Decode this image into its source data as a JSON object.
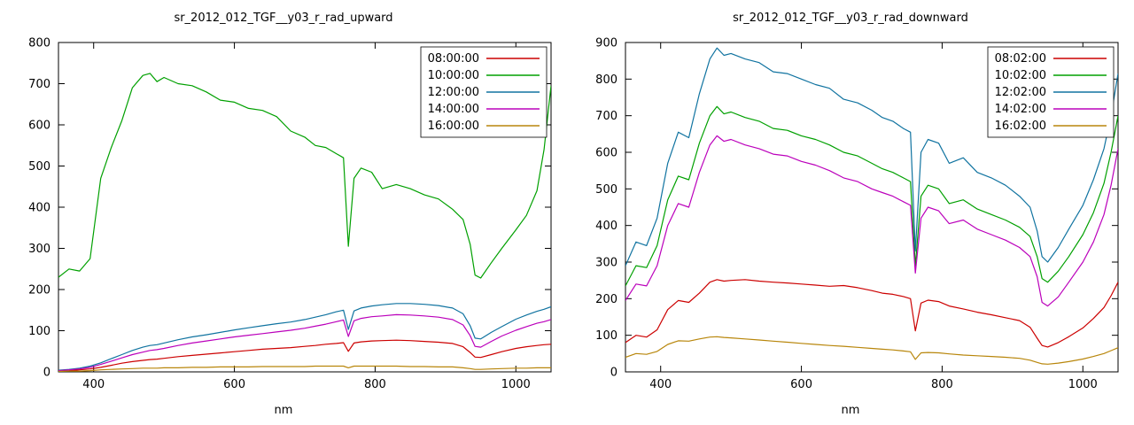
{
  "page": {
    "background": "#ffffff"
  },
  "chart_data": [
    {
      "type": "line",
      "title": "sr_2012_012_TGF__y03_r_rad_upward",
      "xlabel": "nm",
      "xlim": [
        350,
        1050
      ],
      "ylim": [
        0,
        800
      ],
      "xticks": [
        400,
        600,
        800,
        1000
      ],
      "yticks": [
        0,
        100,
        200,
        300,
        400,
        500,
        600,
        700,
        800
      ],
      "legend_position": "top-right",
      "grid": false,
      "x": [
        350,
        365,
        380,
        395,
        410,
        425,
        440,
        455,
        470,
        480,
        490,
        500,
        520,
        540,
        560,
        580,
        600,
        620,
        640,
        660,
        680,
        700,
        715,
        730,
        745,
        755,
        762,
        770,
        780,
        795,
        810,
        830,
        850,
        870,
        890,
        910,
        925,
        935,
        942,
        950,
        965,
        980,
        1000,
        1015,
        1030,
        1040,
        1050
      ],
      "series": [
        {
          "name": "08:00:00",
          "color": "#cc0000",
          "values": [
            2,
            3,
            5,
            7,
            11,
            16,
            21,
            25,
            28,
            30,
            31,
            33,
            37,
            40,
            43,
            46,
            49,
            52,
            55,
            57,
            59,
            62,
            64,
            67,
            69,
            71,
            50,
            70,
            73,
            75,
            76,
            77,
            76,
            74,
            72,
            69,
            61,
            47,
            36,
            35,
            42,
            49,
            57,
            61,
            64,
            66,
            67
          ]
        },
        {
          "name": "10:00:00",
          "color": "#00a000",
          "values": [
            230,
            250,
            245,
            275,
            470,
            545,
            610,
            690,
            720,
            725,
            705,
            715,
            700,
            695,
            680,
            660,
            655,
            640,
            635,
            620,
            585,
            570,
            550,
            545,
            530,
            520,
            305,
            470,
            495,
            485,
            445,
            455,
            445,
            430,
            420,
            395,
            370,
            310,
            235,
            228,
            265,
            300,
            345,
            380,
            440,
            540,
            695
          ]
        },
        {
          "name": "12:00:00",
          "color": "#1073a0",
          "values": [
            4,
            6,
            9,
            14,
            22,
            32,
            42,
            52,
            60,
            64,
            66,
            70,
            78,
            85,
            90,
            96,
            102,
            107,
            112,
            117,
            121,
            127,
            133,
            139,
            146,
            150,
            103,
            148,
            155,
            160,
            163,
            166,
            166,
            164,
            161,
            155,
            141,
            112,
            82,
            80,
            96,
            110,
            128,
            138,
            147,
            152,
            158
          ]
        },
        {
          "name": "14:00:00",
          "color": "#bb00bb",
          "values": [
            3,
            5,
            7,
            11,
            18,
            26,
            34,
            42,
            48,
            52,
            54,
            57,
            64,
            70,
            75,
            80,
            85,
            89,
            93,
            97,
            101,
            106,
            111,
            116,
            122,
            126,
            86,
            124,
            130,
            134,
            136,
            139,
            138,
            136,
            133,
            127,
            114,
            88,
            62,
            60,
            74,
            87,
            101,
            110,
            118,
            122,
            127
          ]
        },
        {
          "name": "16:00:00",
          "color": "#b8860b",
          "values": [
            1,
            2,
            2,
            3,
            5,
            6,
            7,
            8,
            9,
            9,
            9,
            10,
            10,
            11,
            11,
            12,
            12,
            12,
            13,
            13,
            13,
            13,
            14,
            14,
            14,
            14,
            10,
            14,
            14,
            14,
            14,
            14,
            13,
            13,
            12,
            12,
            10,
            8,
            6,
            6,
            7,
            8,
            9,
            9,
            10,
            10,
            10
          ]
        }
      ]
    },
    {
      "type": "line",
      "title": "sr_2012_012_TGF__y03_r_rad_downward",
      "xlabel": "nm",
      "xlim": [
        350,
        1050
      ],
      "ylim": [
        0,
        900
      ],
      "xticks": [
        400,
        600,
        800,
        1000
      ],
      "yticks": [
        0,
        100,
        200,
        300,
        400,
        500,
        600,
        700,
        800,
        900
      ],
      "legend_position": "top-right",
      "grid": false,
      "x": [
        350,
        365,
        380,
        395,
        410,
        425,
        440,
        455,
        470,
        480,
        490,
        500,
        520,
        540,
        560,
        580,
        600,
        620,
        640,
        660,
        680,
        700,
        715,
        730,
        745,
        755,
        762,
        770,
        780,
        795,
        810,
        830,
        850,
        870,
        890,
        910,
        925,
        935,
        942,
        950,
        965,
        980,
        1000,
        1015,
        1030,
        1040,
        1050
      ],
      "series": [
        {
          "name": "08:02:00",
          "color": "#cc0000",
          "values": [
            80,
            100,
            95,
            115,
            170,
            195,
            190,
            215,
            245,
            252,
            248,
            250,
            252,
            248,
            245,
            243,
            240,
            237,
            234,
            236,
            230,
            222,
            215,
            212,
            206,
            200,
            112,
            188,
            196,
            192,
            180,
            172,
            163,
            156,
            148,
            140,
            122,
            92,
            72,
            68,
            80,
            96,
            120,
            146,
            176,
            208,
            245
          ]
        },
        {
          "name": "10:02:00",
          "color": "#00a000",
          "values": [
            235,
            290,
            285,
            345,
            470,
            535,
            525,
            625,
            700,
            725,
            705,
            710,
            695,
            685,
            665,
            660,
            645,
            635,
            620,
            600,
            590,
            570,
            555,
            545,
            530,
            520,
            290,
            480,
            510,
            500,
            460,
            470,
            445,
            430,
            415,
            395,
            370,
            315,
            255,
            245,
            275,
            315,
            375,
            435,
            515,
            600,
            700
          ]
        },
        {
          "name": "12:02:00",
          "color": "#1073a0",
          "values": [
            290,
            355,
            345,
            420,
            570,
            655,
            640,
            760,
            855,
            885,
            865,
            870,
            855,
            845,
            820,
            815,
            800,
            785,
            775,
            745,
            735,
            715,
            695,
            685,
            665,
            655,
            330,
            600,
            635,
            625,
            570,
            585,
            545,
            530,
            510,
            480,
            450,
            385,
            315,
            300,
            340,
            390,
            455,
            525,
            610,
            700,
            815
          ]
        },
        {
          "name": "14:02:00",
          "color": "#bb00bb",
          "values": [
            195,
            240,
            235,
            290,
            400,
            460,
            450,
            545,
            620,
            645,
            630,
            635,
            620,
            610,
            595,
            590,
            575,
            565,
            550,
            530,
            520,
            500,
            490,
            480,
            465,
            455,
            270,
            420,
            450,
            440,
            405,
            415,
            390,
            375,
            360,
            340,
            315,
            260,
            190,
            180,
            205,
            245,
            300,
            355,
            430,
            510,
            610
          ]
        },
        {
          "name": "16:02:00",
          "color": "#b8860b",
          "values": [
            40,
            50,
            48,
            56,
            75,
            85,
            84,
            90,
            95,
            96,
            94,
            93,
            90,
            87,
            84,
            81,
            78,
            75,
            72,
            70,
            67,
            64,
            62,
            60,
            57,
            55,
            34,
            52,
            53,
            52,
            49,
            46,
            44,
            42,
            40,
            37,
            32,
            26,
            22,
            21,
            24,
            28,
            35,
            42,
            50,
            58,
            66
          ]
        }
      ]
    }
  ]
}
